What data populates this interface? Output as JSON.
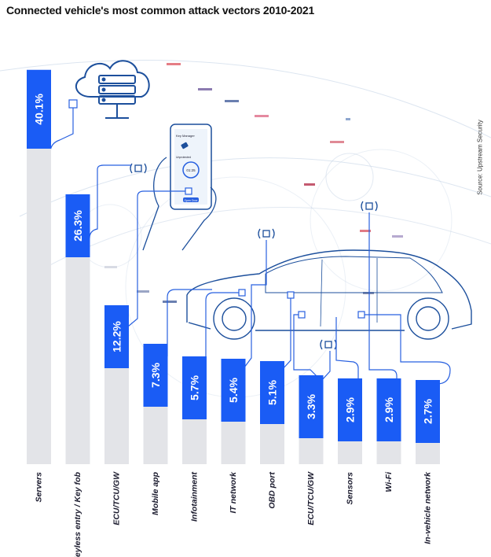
{
  "title": "Connected vehicle's most common attack vectors 2010-2021",
  "source": "Source: Upstream Security",
  "colors": {
    "bar_value": "#1a5cf5",
    "bar_track": "#e3e4e8",
    "line": "#2860e0",
    "deco": "#c5d3e6",
    "text": "#1b1b2e"
  },
  "icons": {
    "cloud": "cloud-server-icon",
    "phone": "smartphone-key-app-icon",
    "car": "car-outline-icon",
    "wireless": "wireless-signal-icon"
  },
  "phone_screen": {
    "header": "Key Manager",
    "status": "Unprotected",
    "timer": "01:25",
    "button": "Open Door"
  },
  "chart_data": {
    "type": "bar",
    "orientation": "vertical",
    "categories": [
      "Servers",
      "Keyless entry / Key fob",
      "ECU/TCU/GW",
      "Mobile app",
      "Infotainment",
      "IT network",
      "OBD port",
      "ECU/TCU/GW",
      "Sensors",
      "Wi-Fi",
      "In-vehicle network"
    ],
    "values": [
      40.1,
      26.3,
      12.2,
      7.3,
      5.7,
      5.4,
      5.1,
      3.3,
      2.9,
      2.9,
      2.7
    ],
    "value_labels": [
      "40.1%",
      "26.3%",
      "12.2%",
      "7.3%",
      "5.7%",
      "5.4%",
      "5.1%",
      "3.3%",
      "2.9%",
      "2.9%",
      "2.7%"
    ],
    "unit": "%",
    "title": "Connected vehicle's most common attack vectors 2010-2021",
    "xlabel": "",
    "ylabel": "",
    "grid": false,
    "legend": "none"
  }
}
